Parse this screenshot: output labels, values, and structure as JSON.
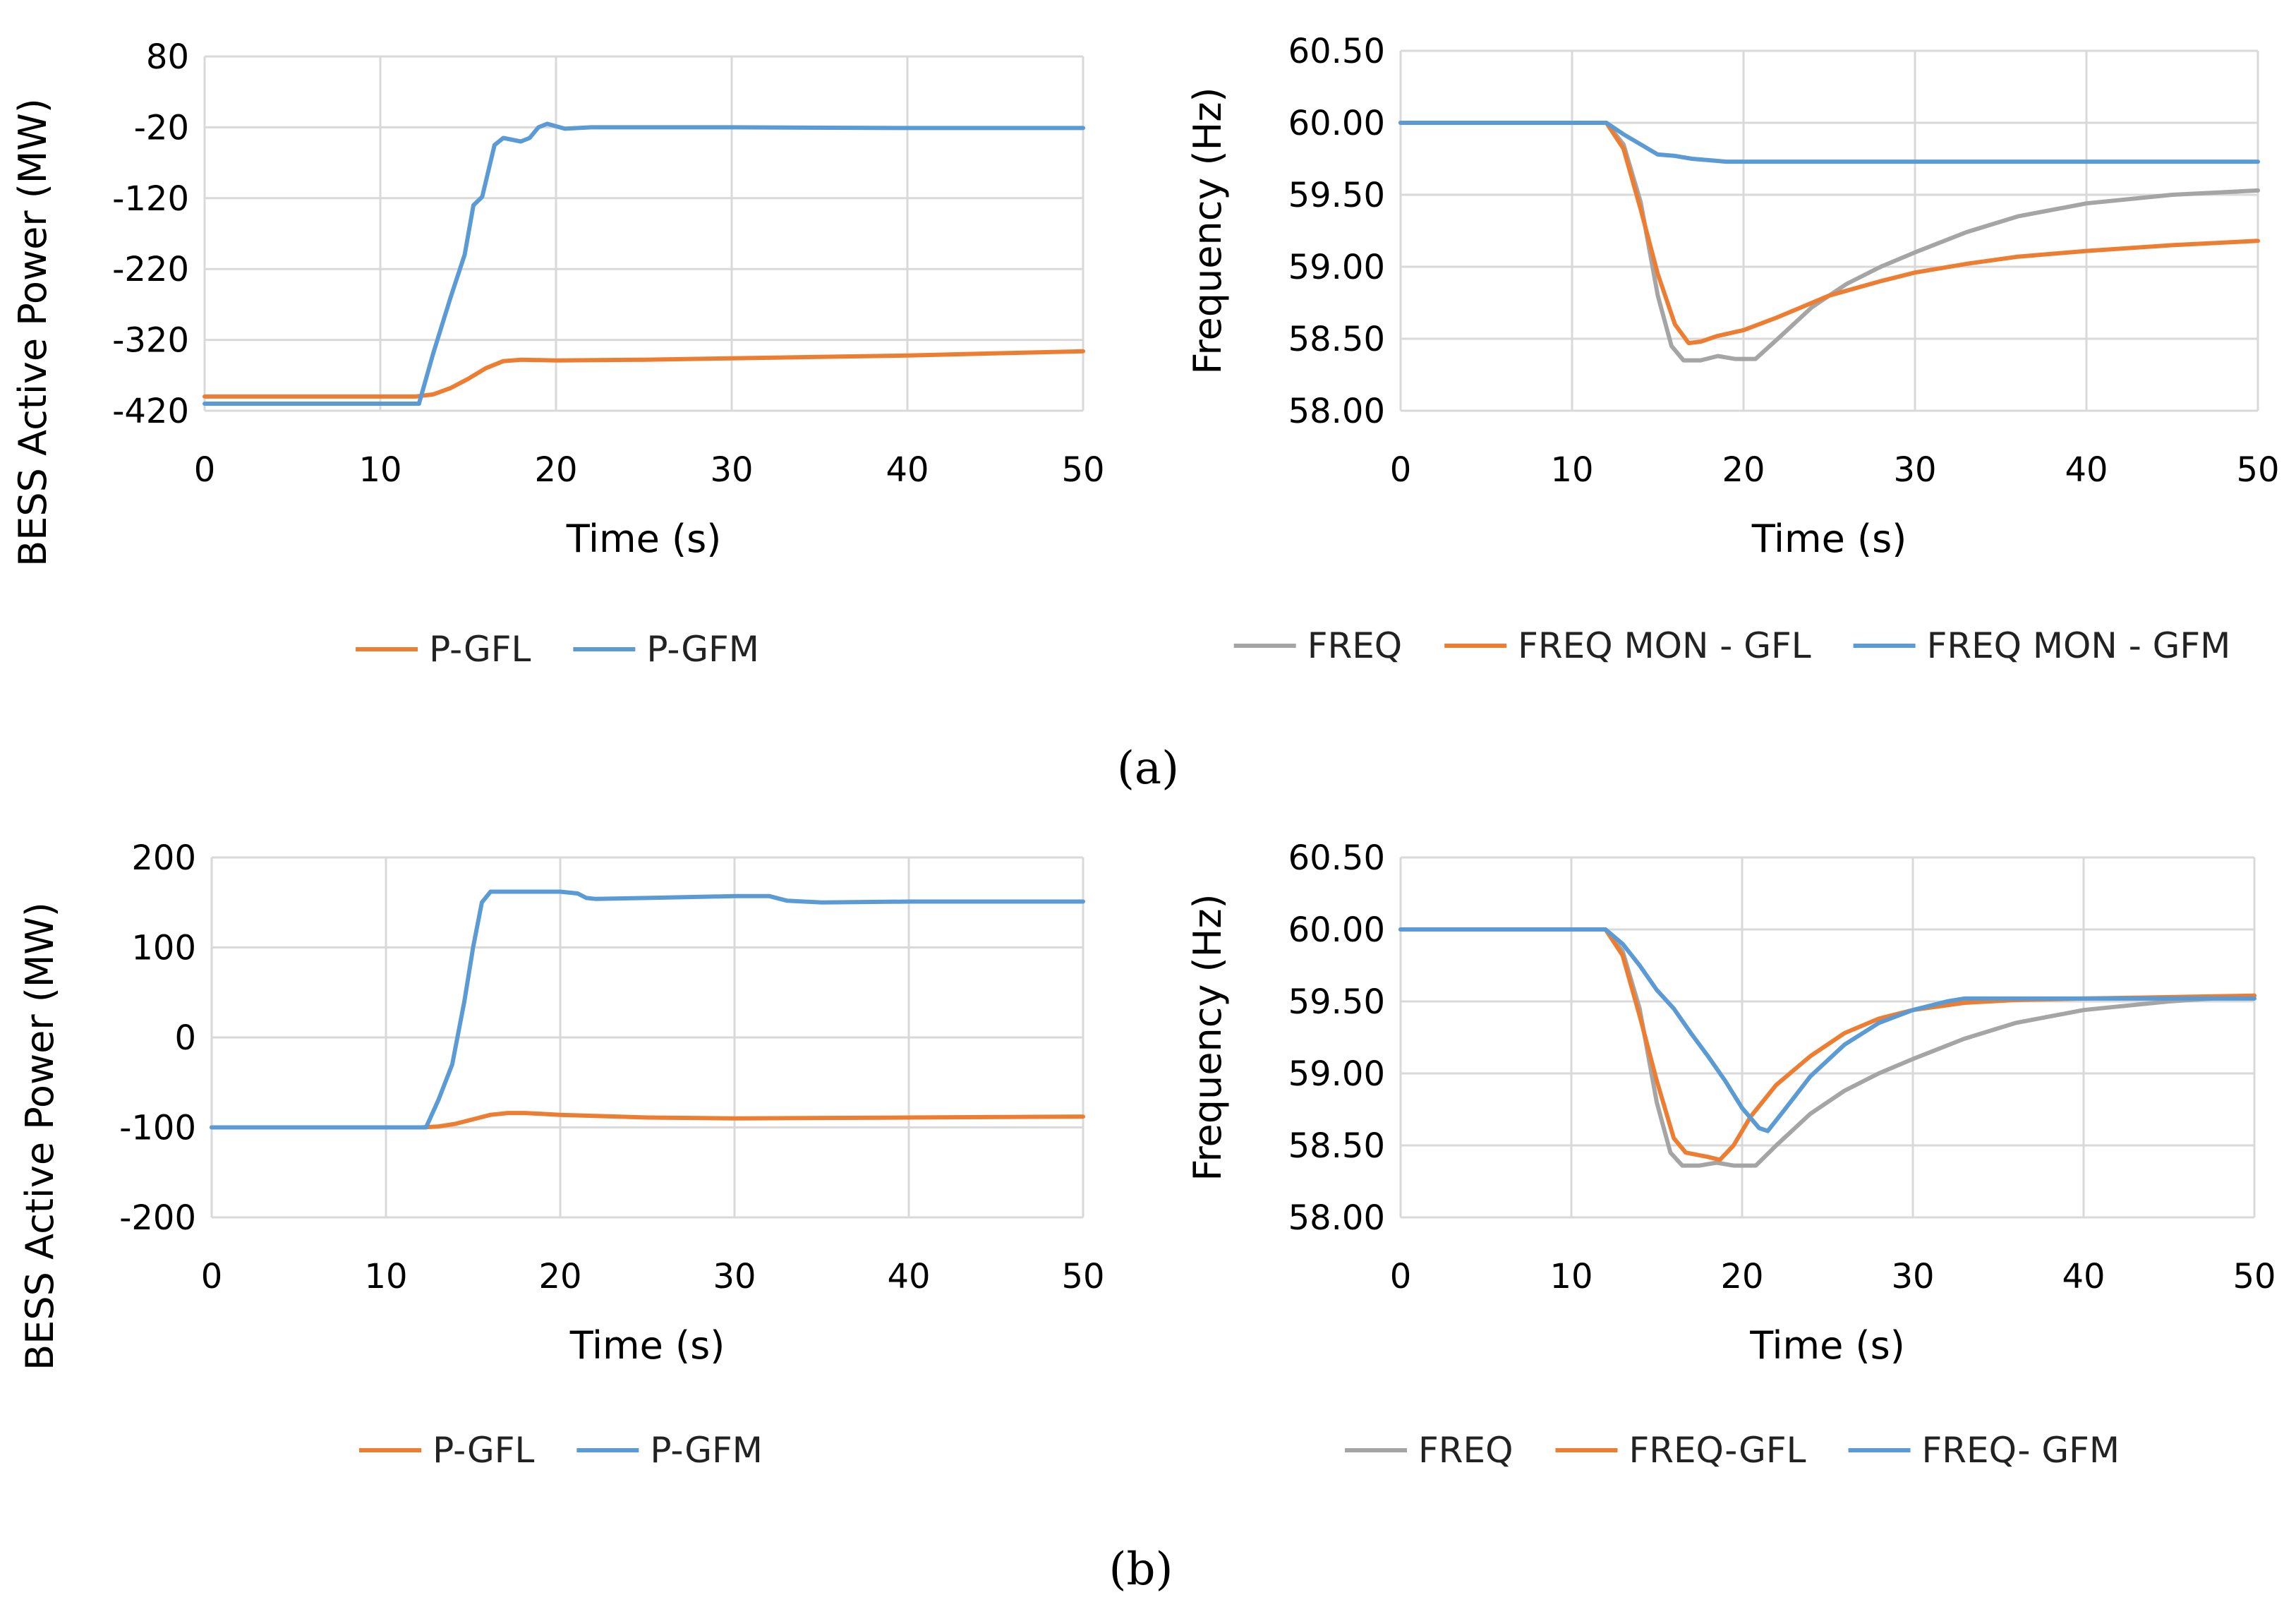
{
  "panel_labels": {
    "a": "(a)",
    "b": "(b)"
  },
  "colors": {
    "gfl": "#ED7D31",
    "gfm": "#5B9BD5",
    "freq": "#A5A5A5"
  },
  "chart_data": [
    {
      "id": "a1",
      "type": "line",
      "xlabel": "Time (s)",
      "ylabel": "BESS Active Power (MW)",
      "xlim": [
        0,
        50
      ],
      "ylim": [
        -420,
        80
      ],
      "xticks": [
        "0",
        "10",
        "20",
        "30",
        "40",
        "50"
      ],
      "xtick_values": [
        0,
        10,
        20,
        30,
        40,
        50
      ],
      "yticks": [
        "80",
        "-20",
        "-120",
        "-220",
        "-320",
        "-420"
      ],
      "ytick_values": [
        80,
        -20,
        -120,
        -220,
        -320,
        -420
      ],
      "legend": "bottom",
      "series": [
        {
          "name": "P-GFL",
          "color": "#ED7D31",
          "points": [
            [
              0,
              -400
            ],
            [
              12,
              -400
            ],
            [
              13,
              -397
            ],
            [
              14,
              -388
            ],
            [
              15,
              -375
            ],
            [
              16,
              -360
            ],
            [
              17,
              -350
            ],
            [
              18,
              -348
            ],
            [
              20,
              -349
            ],
            [
              25,
              -348
            ],
            [
              30,
              -346
            ],
            [
              40,
              -342
            ],
            [
              50,
              -336
            ]
          ]
        },
        {
          "name": "P-GFM",
          "color": "#5B9BD5",
          "points": [
            [
              0,
              -410
            ],
            [
              12.2,
              -410
            ],
            [
              13,
              -340
            ],
            [
              14,
              -260
            ],
            [
              14.8,
              -200
            ],
            [
              15.3,
              -130
            ],
            [
              15.8,
              -118
            ],
            [
              16.5,
              -45
            ],
            [
              17,
              -35
            ],
            [
              18,
              -40
            ],
            [
              18.5,
              -35
            ],
            [
              19,
              -20
            ],
            [
              19.5,
              -15
            ],
            [
              20.5,
              -22
            ],
            [
              22,
              -20
            ],
            [
              30,
              -20
            ],
            [
              40,
              -21
            ],
            [
              50,
              -21
            ]
          ]
        }
      ]
    },
    {
      "id": "a2",
      "type": "line",
      "xlabel": "Time (s)",
      "ylabel": "Frequency (Hz)",
      "xlim": [
        0,
        50
      ],
      "ylim": [
        58.0,
        60.5
      ],
      "xticks": [
        "0",
        "10",
        "20",
        "30",
        "40",
        "50"
      ],
      "xtick_values": [
        0,
        10,
        20,
        30,
        40,
        50
      ],
      "yticks": [
        "60.50",
        "60.00",
        "59.50",
        "59.00",
        "58.50",
        "58.00"
      ],
      "ytick_values": [
        60.5,
        60.0,
        59.5,
        59.0,
        58.5,
        58.0
      ],
      "legend": "bottom",
      "series": [
        {
          "name": "FREQ",
          "color": "#A5A5A5",
          "points": [
            [
              0,
              60
            ],
            [
              12,
              60
            ],
            [
              13,
              59.85
            ],
            [
              14,
              59.45
            ],
            [
              15,
              58.8
            ],
            [
              15.8,
              58.45
            ],
            [
              16.5,
              58.35
            ],
            [
              17.5,
              58.35
            ],
            [
              18.5,
              58.38
            ],
            [
              19.5,
              58.36
            ],
            [
              20.7,
              58.36
            ],
            [
              22,
              58.5
            ],
            [
              24,
              58.72
            ],
            [
              26,
              58.88
            ],
            [
              28,
              59.0
            ],
            [
              30,
              59.1
            ],
            [
              33,
              59.24
            ],
            [
              36,
              59.35
            ],
            [
              40,
              59.44
            ],
            [
              45,
              59.5
            ],
            [
              50,
              59.53
            ]
          ]
        },
        {
          "name": "FREQ MON - GFL",
          "color": "#ED7D31",
          "points": [
            [
              0,
              60
            ],
            [
              12,
              60
            ],
            [
              13,
              59.82
            ],
            [
              14,
              59.4
            ],
            [
              15,
              58.95
            ],
            [
              16,
              58.6
            ],
            [
              16.8,
              58.47
            ],
            [
              17.5,
              58.48
            ],
            [
              18.5,
              58.52
            ],
            [
              20,
              58.56
            ],
            [
              22,
              58.65
            ],
            [
              25,
              58.8
            ],
            [
              28,
              58.9
            ],
            [
              30,
              58.96
            ],
            [
              33,
              59.02
            ],
            [
              36,
              59.07
            ],
            [
              40,
              59.11
            ],
            [
              45,
              59.15
            ],
            [
              50,
              59.18
            ]
          ]
        },
        {
          "name": "FREQ MON - GFM",
          "color": "#5B9BD5",
          "points": [
            [
              0,
              60
            ],
            [
              12,
              60
            ],
            [
              13,
              59.92
            ],
            [
              14,
              59.85
            ],
            [
              15,
              59.78
            ],
            [
              16,
              59.77
            ],
            [
              17,
              59.75
            ],
            [
              18,
              59.74
            ],
            [
              19,
              59.73
            ],
            [
              20,
              59.73
            ],
            [
              25,
              59.73
            ],
            [
              30,
              59.73
            ],
            [
              40,
              59.73
            ],
            [
              50,
              59.73
            ]
          ]
        }
      ]
    },
    {
      "id": "b1",
      "type": "line",
      "xlabel": "Time (s)",
      "ylabel": "BESS Active Power (MW)",
      "xlim": [
        0,
        50
      ],
      "ylim": [
        -200,
        200
      ],
      "xticks": [
        "0",
        "10",
        "20",
        "30",
        "40",
        "50"
      ],
      "xtick_values": [
        0,
        10,
        20,
        30,
        40,
        50
      ],
      "yticks": [
        "200",
        "100",
        "0",
        "-100",
        "-200"
      ],
      "ytick_values": [
        200,
        100,
        0,
        -100,
        -200
      ],
      "legend": "bottom",
      "series": [
        {
          "name": "P-GFL",
          "color": "#ED7D31",
          "points": [
            [
              0,
              -100
            ],
            [
              12,
              -100
            ],
            [
              13,
              -99
            ],
            [
              14,
              -96
            ],
            [
              15,
              -91
            ],
            [
              16,
              -86
            ],
            [
              17,
              -84
            ],
            [
              18,
              -84
            ],
            [
              20,
              -86
            ],
            [
              25,
              -89
            ],
            [
              30,
              -90
            ],
            [
              40,
              -89
            ],
            [
              50,
              -88
            ]
          ]
        },
        {
          "name": "P-GFM",
          "color": "#5B9BD5",
          "points": [
            [
              0,
              -100
            ],
            [
              12.3,
              -100
            ],
            [
              13,
              -70
            ],
            [
              13.8,
              -30
            ],
            [
              14.5,
              40
            ],
            [
              15,
              100
            ],
            [
              15.5,
              150
            ],
            [
              16,
              162
            ],
            [
              18,
              162
            ],
            [
              20,
              162
            ],
            [
              21,
              160
            ],
            [
              21.5,
              155
            ],
            [
              22,
              154
            ],
            [
              25,
              155
            ],
            [
              30,
              157
            ],
            [
              32,
              157
            ],
            [
              33,
              152
            ],
            [
              35,
              150
            ],
            [
              40,
              151
            ],
            [
              50,
              151
            ]
          ]
        }
      ]
    },
    {
      "id": "b2",
      "type": "line",
      "xlabel": "Time (s)",
      "ylabel": "Frequency (Hz)",
      "xlim": [
        0,
        50
      ],
      "ylim": [
        58.0,
        60.5
      ],
      "xticks": [
        "0",
        "10",
        "20",
        "30",
        "40",
        "50"
      ],
      "xtick_values": [
        0,
        10,
        20,
        30,
        40,
        50
      ],
      "yticks": [
        "60.50",
        "60.00",
        "59.50",
        "59.00",
        "58.50",
        "58.00"
      ],
      "ytick_values": [
        60.5,
        60.0,
        59.5,
        59.0,
        58.5,
        58.0
      ],
      "legend": "bottom",
      "series": [
        {
          "name": "FREQ",
          "color": "#A5A5A5",
          "points": [
            [
              0,
              60
            ],
            [
              12,
              60
            ],
            [
              13,
              59.85
            ],
            [
              14,
              59.45
            ],
            [
              15,
              58.8
            ],
            [
              15.8,
              58.45
            ],
            [
              16.5,
              58.36
            ],
            [
              17.5,
              58.36
            ],
            [
              18.5,
              58.38
            ],
            [
              19.5,
              58.36
            ],
            [
              20.8,
              58.36
            ],
            [
              22,
              58.5
            ],
            [
              24,
              58.72
            ],
            [
              26,
              58.88
            ],
            [
              28,
              59.0
            ],
            [
              30,
              59.1
            ],
            [
              33,
              59.24
            ],
            [
              36,
              59.35
            ],
            [
              40,
              59.44
            ],
            [
              45,
              59.5
            ],
            [
              50,
              59.54
            ]
          ]
        },
        {
          "name": "FREQ-GFL",
          "color": "#ED7D31",
          "points": [
            [
              0,
              60
            ],
            [
              12,
              60
            ],
            [
              13,
              59.82
            ],
            [
              14,
              59.4
            ],
            [
              15,
              58.95
            ],
            [
              16,
              58.55
            ],
            [
              16.7,
              58.45
            ],
            [
              18,
              58.42
            ],
            [
              18.7,
              58.4
            ],
            [
              19.5,
              58.5
            ],
            [
              20.5,
              58.7
            ],
            [
              22,
              58.92
            ],
            [
              24,
              59.12
            ],
            [
              26,
              59.28
            ],
            [
              28,
              59.38
            ],
            [
              30,
              59.44
            ],
            [
              33,
              59.49
            ],
            [
              36,
              59.51
            ],
            [
              40,
              59.52
            ],
            [
              45,
              59.53
            ],
            [
              50,
              59.54
            ]
          ]
        },
        {
          "name": "FREQ- GFM",
          "color": "#5B9BD5",
          "points": [
            [
              0,
              60
            ],
            [
              12,
              60
            ],
            [
              13,
              59.9
            ],
            [
              14,
              59.75
            ],
            [
              15,
              59.58
            ],
            [
              16,
              59.45
            ],
            [
              17,
              59.28
            ],
            [
              18,
              59.12
            ],
            [
              19,
              58.95
            ],
            [
              20,
              58.76
            ],
            [
              21,
              58.62
            ],
            [
              21.5,
              58.6
            ],
            [
              22.5,
              58.75
            ],
            [
              24,
              58.98
            ],
            [
              26,
              59.2
            ],
            [
              28,
              59.35
            ],
            [
              30,
              59.44
            ],
            [
              32,
              59.5
            ],
            [
              33,
              59.52
            ],
            [
              35,
              59.52
            ],
            [
              40,
              59.52
            ],
            [
              45,
              59.52
            ],
            [
              50,
              59.52
            ]
          ]
        }
      ]
    }
  ]
}
